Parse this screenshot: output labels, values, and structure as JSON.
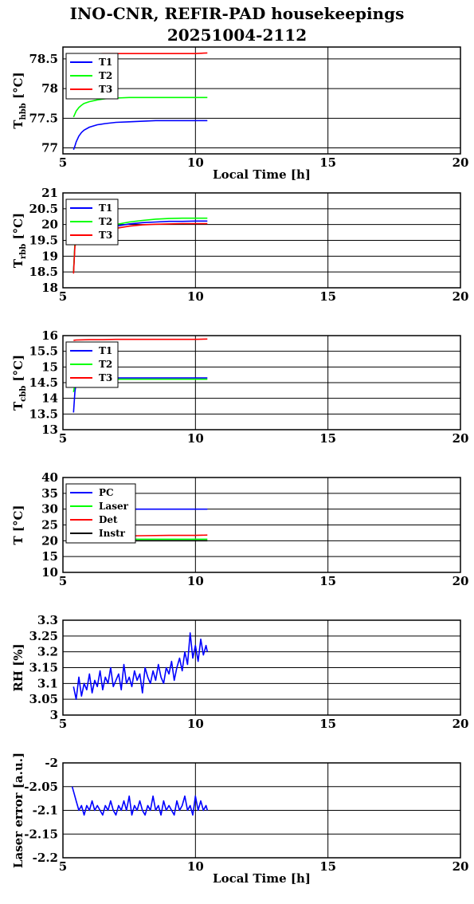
{
  "title_line1": "INO-CNR, REFIR-PAD housekeepings",
  "title_line2": "20251004-2112",
  "chart_data": [
    {
      "type": "line",
      "id": "hbb",
      "ylabel": "T",
      "ylabel_sub": "hbb",
      "ylabel_unit": " [°C]",
      "xlabel": "Local Time [h]",
      "xlim": [
        5,
        20
      ],
      "xticks": [
        5,
        10,
        15,
        20
      ],
      "ylim": [
        76.9,
        78.7
      ],
      "yticks": [
        77,
        77.5,
        78,
        78.5
      ],
      "ytick_labels": [
        "77",
        "77.5",
        "78",
        "78.5"
      ],
      "grid": true,
      "legend_position": "top-left",
      "series": [
        {
          "name": "T1",
          "color": "#0000ff",
          "x": [
            5.4,
            5.45,
            5.5,
            5.6,
            5.7,
            5.8,
            6.0,
            6.3,
            6.6,
            7.0,
            7.5,
            8.0,
            8.5,
            9.0,
            9.5,
            10.0,
            10.45
          ],
          "y": [
            76.97,
            77.03,
            77.1,
            77.2,
            77.26,
            77.3,
            77.35,
            77.39,
            77.41,
            77.43,
            77.44,
            77.45,
            77.46,
            77.46,
            77.46,
            77.46,
            77.46
          ]
        },
        {
          "name": "T2",
          "color": "#00ff00",
          "x": [
            5.4,
            5.45,
            5.5,
            5.6,
            5.7,
            5.8,
            6.0,
            6.3,
            6.6,
            7.0,
            7.5,
            8.0,
            8.5,
            9.0,
            9.5,
            10.0,
            10.45
          ],
          "y": [
            77.52,
            77.57,
            77.62,
            77.68,
            77.72,
            77.75,
            77.78,
            77.81,
            77.83,
            77.84,
            77.85,
            77.85,
            77.85,
            77.85,
            77.85,
            77.85,
            77.85
          ]
        },
        {
          "name": "T3",
          "color": "#ff0000",
          "x": [
            5.4,
            5.5,
            5.7,
            6.0,
            6.5,
            7.0,
            7.5,
            8.0,
            8.5,
            9.0,
            9.5,
            10.0,
            10.45
          ],
          "y": [
            78.56,
            78.57,
            78.58,
            78.58,
            78.59,
            78.59,
            78.59,
            78.59,
            78.59,
            78.59,
            78.59,
            78.59,
            78.6
          ]
        }
      ]
    },
    {
      "type": "line",
      "id": "rbb",
      "ylabel": "T",
      "ylabel_sub": "rbb",
      "ylabel_unit": " [°C]",
      "xlabel": "",
      "xlim": [
        5,
        20
      ],
      "xticks": [
        5,
        10,
        15,
        20
      ],
      "ylim": [
        18,
        21
      ],
      "yticks": [
        18,
        18.5,
        19,
        19.5,
        20,
        20.5,
        21
      ],
      "ytick_labels": [
        "18",
        "18.5",
        "19",
        "19.5",
        "20",
        "20.5",
        "21"
      ],
      "grid": true,
      "legend_position": "top-left",
      "series": [
        {
          "name": "T1",
          "color": "#0000ff",
          "x": [
            5.4,
            5.45,
            5.5,
            5.7,
            6.0,
            6.5,
            7.0,
            7.5,
            8.0,
            8.5,
            9.0,
            9.5,
            10.0,
            10.45
          ],
          "y": [
            18.5,
            19.35,
            19.45,
            19.55,
            19.7,
            19.85,
            19.95,
            20.02,
            20.06,
            20.08,
            20.1,
            20.1,
            20.11,
            20.11
          ]
        },
        {
          "name": "T2",
          "color": "#00ff00",
          "x": [
            5.4,
            5.45,
            5.5,
            5.7,
            6.0,
            6.5,
            7.0,
            7.5,
            8.0,
            8.5,
            9.0,
            9.5,
            10.0,
            10.45
          ],
          "y": [
            18.5,
            19.4,
            19.5,
            19.6,
            19.75,
            19.9,
            20.0,
            20.08,
            20.13,
            20.17,
            20.19,
            20.2,
            20.2,
            20.2
          ]
        },
        {
          "name": "T3",
          "color": "#ff0000",
          "x": [
            5.4,
            5.45,
            5.5,
            5.7,
            6.0,
            6.5,
            7.0,
            7.5,
            8.0,
            8.5,
            9.0,
            9.5,
            10.0,
            10.45
          ],
          "y": [
            18.45,
            19.3,
            19.45,
            19.55,
            19.65,
            19.78,
            19.88,
            19.95,
            19.99,
            20.01,
            20.02,
            20.03,
            20.03,
            20.03
          ]
        }
      ]
    },
    {
      "type": "line",
      "id": "cbb",
      "ylabel": "T",
      "ylabel_sub": "cbb",
      "ylabel_unit": " [°C]",
      "xlabel": "",
      "xlim": [
        5,
        20
      ],
      "xticks": [
        5,
        10,
        15,
        20
      ],
      "ylim": [
        13,
        16
      ],
      "yticks": [
        13,
        13.5,
        14,
        14.5,
        15,
        15.5,
        16
      ],
      "ytick_labels": [
        "13",
        "13.5",
        "14",
        "14.5",
        "15",
        "15.5",
        "16"
      ],
      "grid": true,
      "legend_position": "top-left",
      "series": [
        {
          "name": "T1",
          "color": "#0000ff",
          "x": [
            5.4,
            5.45,
            5.5,
            5.6,
            5.8,
            6.0,
            6.5,
            7.0,
            8.0,
            9.0,
            10.0,
            10.45
          ],
          "y": [
            13.55,
            14.2,
            14.5,
            14.6,
            14.63,
            14.64,
            14.65,
            14.65,
            14.65,
            14.65,
            14.65,
            14.65
          ]
        },
        {
          "name": "T2",
          "color": "#00ff00",
          "x": [
            5.4,
            5.45,
            5.5,
            5.6,
            5.8,
            6.0,
            6.5,
            7.0,
            8.0,
            9.0,
            10.0,
            10.45
          ],
          "y": [
            14.2,
            14.45,
            14.55,
            14.58,
            14.6,
            14.6,
            14.61,
            14.61,
            14.61,
            14.61,
            14.61,
            14.61
          ]
        },
        {
          "name": "T3",
          "color": "#ff0000",
          "x": [
            5.4,
            5.5,
            6.0,
            6.5,
            7.0,
            8.0,
            9.0,
            10.0,
            10.45
          ],
          "y": [
            15.85,
            15.86,
            15.87,
            15.87,
            15.88,
            15.88,
            15.88,
            15.88,
            15.89
          ]
        }
      ]
    },
    {
      "type": "line",
      "id": "temps",
      "ylabel": "T [°C]",
      "ylabel_sub": "",
      "ylabel_unit": "",
      "xlabel": "",
      "xlim": [
        5,
        20
      ],
      "xticks": [
        5,
        10,
        15,
        20
      ],
      "ylim": [
        10,
        40
      ],
      "yticks": [
        10,
        15,
        20,
        25,
        30,
        35,
        40
      ],
      "ytick_labels": [
        "10",
        "15",
        "20",
        "25",
        "30",
        "35",
        "40"
      ],
      "grid": true,
      "legend_position": "top-left",
      "series": [
        {
          "name": "PC",
          "color": "#0000ff",
          "x": [
            5.4,
            6.0,
            7.0,
            8.0,
            9.0,
            10.0,
            10.45
          ],
          "y": [
            30,
            30,
            30,
            30,
            30,
            30,
            30
          ]
        },
        {
          "name": "Laser",
          "color": "#00ff00",
          "x": [
            5.4,
            6.0,
            7.0,
            8.0,
            9.0,
            10.0,
            10.45
          ],
          "y": [
            20.2,
            20.4,
            20.5,
            20.5,
            20.5,
            20.5,
            20.5
          ]
        },
        {
          "name": "Det",
          "color": "#ff0000",
          "x": [
            5.4,
            6.0,
            7.0,
            8.0,
            9.0,
            10.0,
            10.45
          ],
          "y": [
            20.7,
            21.2,
            21.5,
            21.6,
            21.7,
            21.7,
            21.8
          ]
        },
        {
          "name": "Instr",
          "color": "#000000",
          "x": [
            5.4,
            6.0,
            7.0,
            8.0,
            9.0,
            10.0,
            10.45
          ],
          "y": [
            19.7,
            19.9,
            20.0,
            20.0,
            20.0,
            20.0,
            20.0
          ]
        }
      ]
    },
    {
      "type": "line",
      "id": "rh",
      "ylabel": "RH [%]",
      "ylabel_sub": "",
      "ylabel_unit": "",
      "xlabel": "",
      "xlim": [
        5,
        20
      ],
      "xticks": [
        5,
        10,
        15,
        20
      ],
      "ylim": [
        3,
        3.3
      ],
      "yticks": [
        3,
        3.05,
        3.1,
        3.15,
        3.2,
        3.25,
        3.3
      ],
      "ytick_labels": [
        "3",
        "3.05",
        "3.1",
        "3.15",
        "3.2",
        "3.25",
        "3.3"
      ],
      "grid": true,
      "legend_position": "none",
      "series": [
        {
          "name": "",
          "color": "#0000ff",
          "x": [
            5.4,
            5.5,
            5.6,
            5.7,
            5.8,
            5.9,
            6.0,
            6.1,
            6.2,
            6.3,
            6.4,
            6.5,
            6.6,
            6.7,
            6.8,
            6.9,
            7.0,
            7.1,
            7.2,
            7.3,
            7.4,
            7.5,
            7.6,
            7.7,
            7.8,
            7.9,
            8.0,
            8.1,
            8.2,
            8.3,
            8.4,
            8.5,
            8.6,
            8.7,
            8.8,
            8.9,
            9.0,
            9.1,
            9.2,
            9.3,
            9.4,
            9.5,
            9.6,
            9.7,
            9.8,
            9.9,
            10.0,
            10.1,
            10.2,
            10.3,
            10.4,
            10.45
          ],
          "y": [
            3.09,
            3.05,
            3.12,
            3.06,
            3.1,
            3.08,
            3.13,
            3.07,
            3.11,
            3.09,
            3.14,
            3.08,
            3.12,
            3.1,
            3.15,
            3.09,
            3.11,
            3.13,
            3.08,
            3.16,
            3.1,
            3.12,
            3.09,
            3.14,
            3.11,
            3.13,
            3.07,
            3.15,
            3.12,
            3.1,
            3.14,
            3.11,
            3.16,
            3.12,
            3.1,
            3.15,
            3.13,
            3.17,
            3.11,
            3.15,
            3.18,
            3.14,
            3.2,
            3.16,
            3.26,
            3.18,
            3.22,
            3.17,
            3.24,
            3.19,
            3.22,
            3.2
          ]
        }
      ]
    },
    {
      "type": "line",
      "id": "laser",
      "ylabel": "Laser error [a.u.]",
      "ylabel_sub": "",
      "ylabel_unit": "",
      "xlabel": "Local Time [h]",
      "xlim": [
        5,
        20
      ],
      "xticks": [
        5,
        10,
        15,
        20
      ],
      "ylim": [
        -2.2,
        -2
      ],
      "yticks": [
        -2.2,
        -2.15,
        -2.1,
        -2.05,
        -2
      ],
      "ytick_labels": [
        "-2.2",
        "-2.15",
        "-2.1",
        "-2.05",
        "-2"
      ],
      "grid": true,
      "legend_position": "none",
      "series": [
        {
          "name": "",
          "color": "#0000ff",
          "x": [
            5.35,
            5.4,
            5.5,
            5.6,
            5.7,
            5.8,
            5.9,
            6.0,
            6.1,
            6.2,
            6.3,
            6.4,
            6.5,
            6.6,
            6.7,
            6.8,
            6.9,
            7.0,
            7.1,
            7.2,
            7.3,
            7.4,
            7.5,
            7.6,
            7.7,
            7.8,
            7.9,
            8.0,
            8.1,
            8.2,
            8.3,
            8.4,
            8.5,
            8.6,
            8.7,
            8.8,
            8.9,
            9.0,
            9.1,
            9.2,
            9.3,
            9.4,
            9.5,
            9.6,
            9.7,
            9.8,
            9.9,
            10.0,
            10.1,
            10.2,
            10.3,
            10.4,
            10.45
          ],
          "y": [
            -2.05,
            -2.06,
            -2.08,
            -2.1,
            -2.09,
            -2.11,
            -2.09,
            -2.1,
            -2.08,
            -2.1,
            -2.09,
            -2.1,
            -2.11,
            -2.09,
            -2.1,
            -2.08,
            -2.1,
            -2.11,
            -2.09,
            -2.1,
            -2.08,
            -2.1,
            -2.07,
            -2.11,
            -2.09,
            -2.1,
            -2.08,
            -2.1,
            -2.11,
            -2.09,
            -2.1,
            -2.07,
            -2.1,
            -2.09,
            -2.11,
            -2.08,
            -2.1,
            -2.09,
            -2.1,
            -2.11,
            -2.08,
            -2.1,
            -2.09,
            -2.07,
            -2.1,
            -2.09,
            -2.11,
            -2.07,
            -2.1,
            -2.08,
            -2.1,
            -2.09,
            -2.1
          ]
        }
      ]
    }
  ]
}
